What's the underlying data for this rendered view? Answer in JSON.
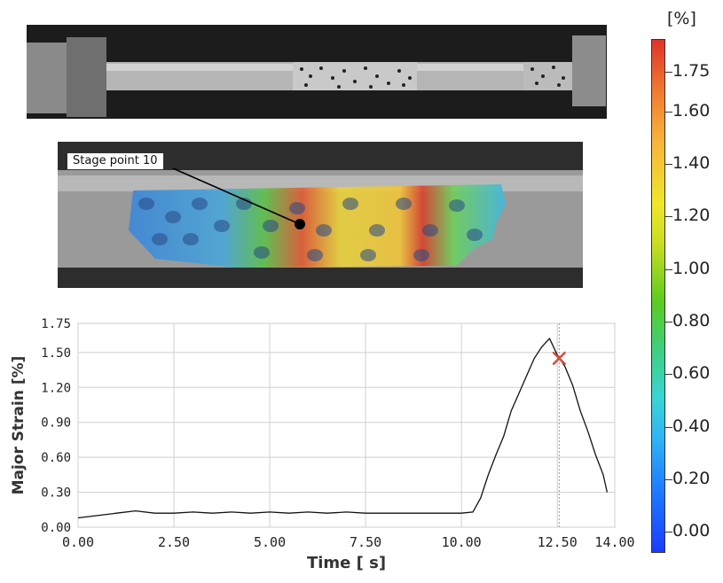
{
  "annotation": {
    "label": "Stage point 10"
  },
  "colorbar": {
    "unit": "[%]",
    "ticks": [
      {
        "value": 1.75,
        "label": "1.75"
      },
      {
        "value": 1.6,
        "label": "1.60"
      },
      {
        "value": 1.4,
        "label": "1.40"
      },
      {
        "value": 1.2,
        "label": "1.20"
      },
      {
        "value": 1.0,
        "label": "1.00"
      },
      {
        "value": 0.8,
        "label": "0.80"
      },
      {
        "value": 0.6,
        "label": "0.60"
      },
      {
        "value": 0.4,
        "label": "0.40"
      },
      {
        "value": 0.2,
        "label": "0.20"
      },
      {
        "value": 0.0,
        "label": "0.00"
      }
    ]
  },
  "chart_data": {
    "type": "line",
    "xlabel": "Time [ s]",
    "ylabel": "Major Strain [%]",
    "xlim": [
      0,
      14
    ],
    "ylim": [
      0,
      1.75
    ],
    "grid": true,
    "x_ticks": [
      {
        "value": 0,
        "label": "0.00"
      },
      {
        "value": 2.5,
        "label": "2.50"
      },
      {
        "value": 5,
        "label": "5.00"
      },
      {
        "value": 7.5,
        "label": "7.50"
      },
      {
        "value": 10,
        "label": "10.00"
      },
      {
        "value": 12.5,
        "label": "12.50"
      },
      {
        "value": 14,
        "label": "14.00"
      }
    ],
    "y_ticks": [
      {
        "value": 0,
        "label": "0.00"
      },
      {
        "value": 0.3,
        "label": "0.30"
      },
      {
        "value": 0.6,
        "label": "0.60"
      },
      {
        "value": 0.9,
        "label": "0.90"
      },
      {
        "value": 1.2,
        "label": "1.20"
      },
      {
        "value": 1.5,
        "label": "1.50"
      },
      {
        "value": 1.75,
        "label": "1.75"
      }
    ],
    "series": [
      {
        "color": "#111111",
        "x": [
          0,
          0.5,
          1,
          1.5,
          2,
          2.5,
          3,
          3.5,
          4,
          4.5,
          5,
          5.5,
          6,
          6.5,
          7,
          7.5,
          8,
          8.5,
          9,
          9.5,
          10,
          10.3,
          10.5,
          10.7,
          10.9,
          11.1,
          11.3,
          11.5,
          11.7,
          11.9,
          12.1,
          12.3,
          12.5,
          12.7,
          12.9,
          13.1,
          13.3,
          13.5,
          13.7,
          13.8
        ],
        "y": [
          0.08,
          0.1,
          0.12,
          0.14,
          0.12,
          0.12,
          0.13,
          0.12,
          0.13,
          0.12,
          0.13,
          0.12,
          0.13,
          0.12,
          0.13,
          0.12,
          0.12,
          0.12,
          0.12,
          0.12,
          0.12,
          0.13,
          0.25,
          0.45,
          0.62,
          0.78,
          1.0,
          1.15,
          1.3,
          1.45,
          1.55,
          1.62,
          1.48,
          1.38,
          1.22,
          1.0,
          0.82,
          0.62,
          0.45,
          0.3
        ]
      }
    ],
    "marker": {
      "x": 12.55,
      "y": 1.45,
      "symbol": "x",
      "color": "#d84a3a"
    },
    "vline": {
      "x": 12.55
    }
  }
}
